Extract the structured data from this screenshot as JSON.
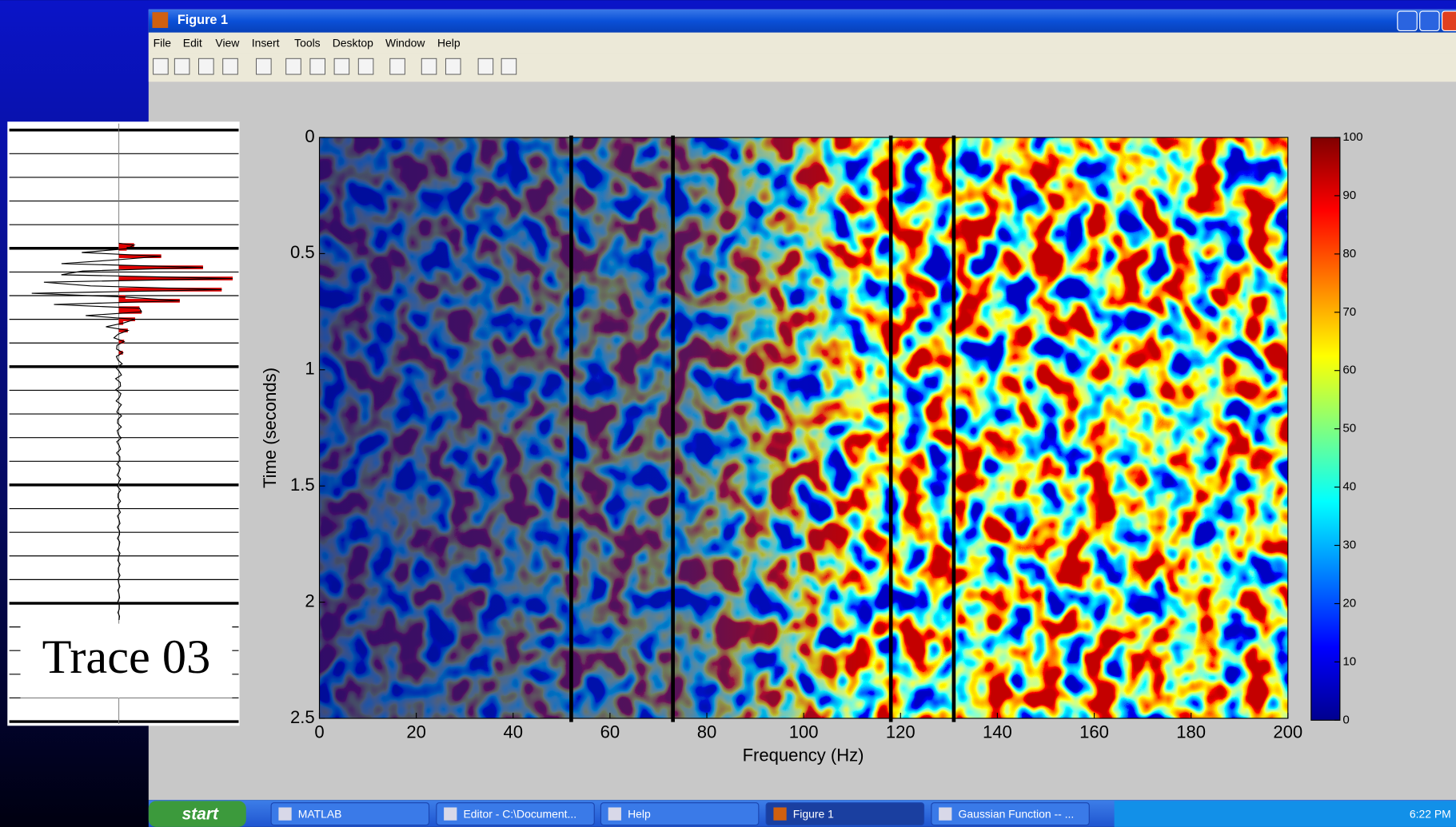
{
  "window": {
    "title": "Figure 1",
    "menu": [
      "File",
      "Edit",
      "View",
      "Insert",
      "Tools",
      "Desktop",
      "Window",
      "Help"
    ]
  },
  "inset": {
    "label": "Trace 03"
  },
  "chart_data": {
    "type": "heatmap",
    "xlabel": "Frequency (Hz)",
    "ylabel": "Time (seconds)",
    "xlim": [
      0,
      200
    ],
    "xticks": [
      0,
      20,
      40,
      60,
      80,
      100,
      120,
      140,
      160,
      180,
      200
    ],
    "ylim": [
      0,
      2.5
    ],
    "yticks": [
      0,
      0.5,
      1,
      1.5,
      2,
      2.5
    ],
    "y_inverted": true,
    "colorbar": {
      "lim": [
        0,
        100
      ],
      "ticks": [
        0,
        10,
        20,
        30,
        40,
        50,
        60,
        70,
        80,
        90,
        100
      ]
    },
    "vlines": {
      "x": [
        52,
        73,
        118,
        131
      ],
      "color": "#000000"
    }
  },
  "taskbar": {
    "start": "start",
    "items": [
      "MATLAB",
      "Editor - C:\\Document...",
      "Help",
      "Figure 1",
      "Gaussian Function -- ..."
    ],
    "clock": "6:22 PM"
  }
}
